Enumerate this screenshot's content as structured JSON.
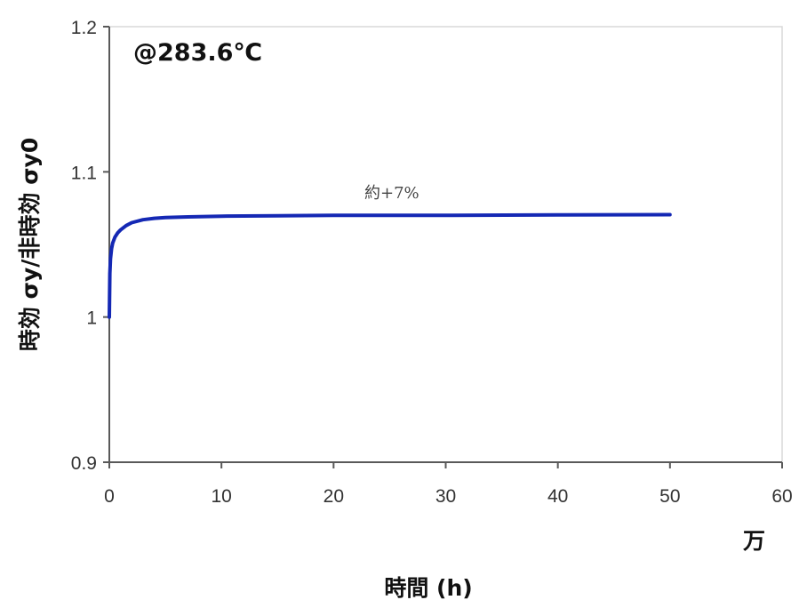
{
  "chart_data": {
    "type": "line",
    "annotation": "@283.6℃",
    "xlabel": "時間 (h)",
    "x_unit": "万",
    "ylabel": "時効 σy/非時効 σy0",
    "xlim": [
      0,
      60
    ],
    "ylim": [
      0.9,
      1.2
    ],
    "x_ticks": [
      0,
      10,
      20,
      30,
      40,
      50,
      60
    ],
    "y_ticks": [
      0.9,
      1,
      1.1,
      1.2
    ],
    "y_tick_labels": [
      "0.9",
      "1",
      "1.1",
      "1.2"
    ],
    "grid": false,
    "series": [
      {
        "label": "約+7%",
        "color": "#1428b4",
        "x": [
          0,
          0.05,
          0.1,
          0.2,
          0.3,
          0.5,
          0.75,
          1,
          1.5,
          2,
          3,
          4,
          5,
          7,
          10,
          15,
          20,
          25,
          30,
          40,
          50
        ],
        "y": [
          1.0,
          1.03,
          1.04,
          1.047,
          1.051,
          1.055,
          1.058,
          1.06,
          1.063,
          1.065,
          1.067,
          1.068,
          1.0685,
          1.069,
          1.0695,
          1.0698,
          1.07,
          1.07,
          1.07,
          1.0703,
          1.0705
        ]
      }
    ]
  }
}
